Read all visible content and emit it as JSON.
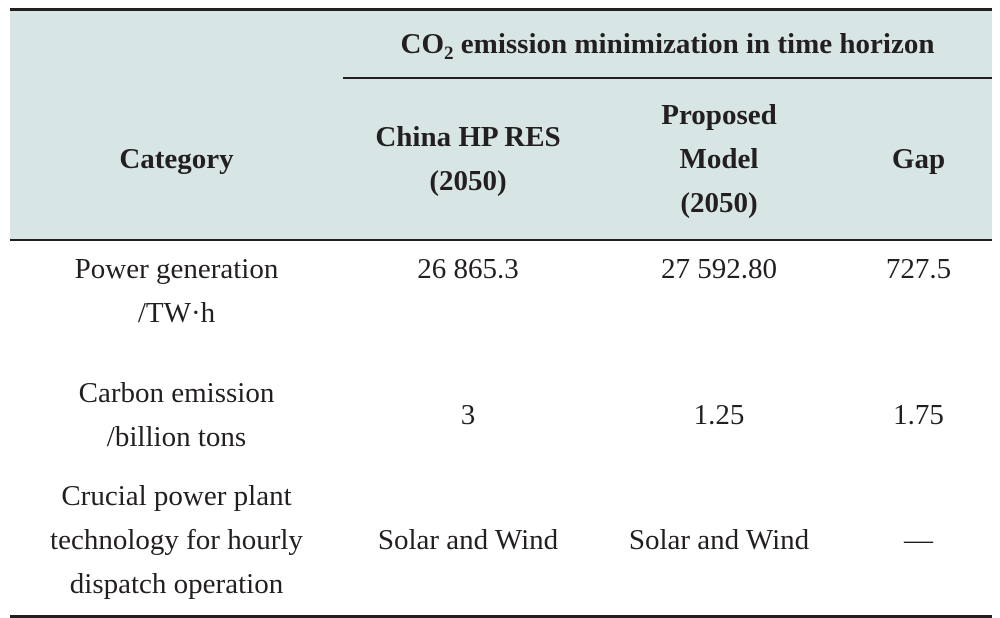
{
  "table": {
    "group_header": {
      "prefix": "CO",
      "subscript": "2",
      "suffix": " emission minimization in time horizon"
    },
    "columns": [
      {
        "lines": [
          "Category"
        ]
      },
      {
        "lines": [
          "China HP RES",
          "(2050)"
        ]
      },
      {
        "lines": [
          "Proposed",
          "Model",
          "(2050)"
        ]
      },
      {
        "lines": [
          "Gap"
        ]
      }
    ],
    "rows": [
      {
        "category": [
          "Power generation",
          "/TW·h"
        ],
        "china_hp_res": "26 865.3",
        "proposed_model": "27 592.80",
        "gap": "727.5"
      },
      {
        "category": [
          "Carbon emission",
          "/billion tons"
        ],
        "china_hp_res": "3",
        "proposed_model": "1.25",
        "gap": "1.75"
      },
      {
        "category": [
          "Crucial power plant",
          "technology for hourly",
          "dispatch operation"
        ],
        "china_hp_res": "Solar and Wind",
        "proposed_model": "Solar and Wind",
        "gap": "—"
      }
    ],
    "colors": {
      "header_background": "#d7e6e4",
      "rule": "#231f20",
      "text": "#231f20"
    }
  }
}
